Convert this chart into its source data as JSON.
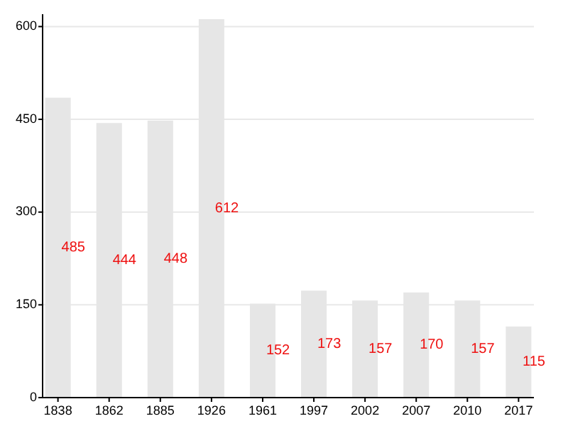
{
  "chart_data": {
    "type": "bar",
    "categories": [
      "1838",
      "1862",
      "1885",
      "1926",
      "1961",
      "1997",
      "2002",
      "2007",
      "2010",
      "2017"
    ],
    "values": [
      485,
      444,
      448,
      612,
      152,
      173,
      157,
      170,
      157,
      115
    ],
    "color": "#e6e6e6",
    "ylim": [
      0,
      620
    ],
    "yticks": [
      0,
      150,
      300,
      450,
      600
    ],
    "grid": "y",
    "data_labels": true
  }
}
